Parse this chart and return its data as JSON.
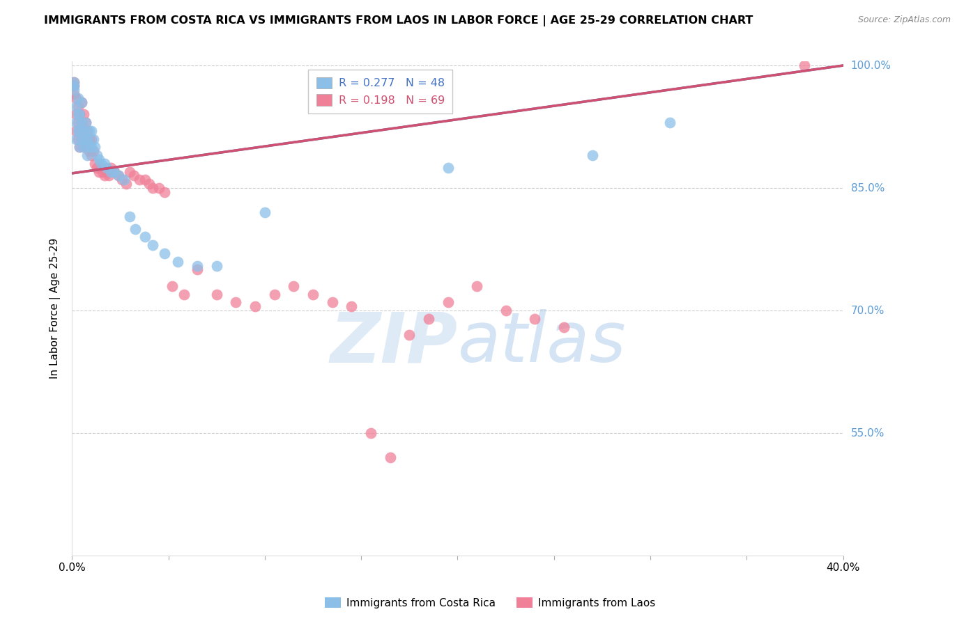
{
  "title": "IMMIGRANTS FROM COSTA RICA VS IMMIGRANTS FROM LAOS IN LABOR FORCE | AGE 25-29 CORRELATION CHART",
  "source": "Source: ZipAtlas.com",
  "ylabel": "In Labor Force | Age 25-29",
  "legend_label_blue": "Immigrants from Costa Rica",
  "legend_label_pink": "Immigrants from Laos",
  "R_blue": 0.277,
  "N_blue": 48,
  "R_pink": 0.198,
  "N_pink": 69,
  "xlim": [
    0.0,
    0.4
  ],
  "ylim": [
    0.4,
    1.005
  ],
  "yticks": [
    0.55,
    0.7,
    0.85,
    1.0
  ],
  "ytick_labels": [
    "55.0%",
    "70.0%",
    "85.0%",
    "100.0%"
  ],
  "xticks": [
    0.0,
    0.05,
    0.1,
    0.15,
    0.2,
    0.25,
    0.3,
    0.35,
    0.4
  ],
  "xtick_labels": [
    "0.0%",
    "",
    "",
    "",
    "",
    "",
    "",
    "",
    "40.0%"
  ],
  "blue_color": "#8BBFE8",
  "pink_color": "#F08098",
  "blue_line_color": "#4472C4",
  "pink_line_color": "#D05070",
  "grid_color": "#CCCCCC",
  "right_label_color": "#5B9BD5",
  "watermark_zip": "ZIP",
  "watermark_atlas": "atlas",
  "costa_rica_x": [
    0.001,
    0.001,
    0.001,
    0.002,
    0.002,
    0.002,
    0.003,
    0.003,
    0.003,
    0.004,
    0.004,
    0.004,
    0.005,
    0.005,
    0.005,
    0.006,
    0.006,
    0.007,
    0.007,
    0.008,
    0.008,
    0.009,
    0.009,
    0.01,
    0.01,
    0.011,
    0.012,
    0.013,
    0.014,
    0.015,
    0.017,
    0.018,
    0.02,
    0.022,
    0.024,
    0.027,
    0.03,
    0.033,
    0.038,
    0.042,
    0.048,
    0.055,
    0.065,
    0.075,
    0.1,
    0.195,
    0.27,
    0.31
  ],
  "costa_rica_y": [
    0.97,
    0.975,
    0.98,
    0.91,
    0.93,
    0.95,
    0.92,
    0.94,
    0.96,
    0.9,
    0.92,
    0.94,
    0.91,
    0.93,
    0.955,
    0.9,
    0.92,
    0.91,
    0.93,
    0.89,
    0.91,
    0.9,
    0.92,
    0.9,
    0.92,
    0.91,
    0.9,
    0.89,
    0.885,
    0.88,
    0.88,
    0.875,
    0.87,
    0.87,
    0.865,
    0.86,
    0.815,
    0.8,
    0.79,
    0.78,
    0.77,
    0.76,
    0.755,
    0.755,
    0.82,
    0.875,
    0.89,
    0.93
  ],
  "laos_x": [
    0.001,
    0.001,
    0.001,
    0.002,
    0.002,
    0.002,
    0.003,
    0.003,
    0.003,
    0.004,
    0.004,
    0.004,
    0.005,
    0.005,
    0.005,
    0.006,
    0.006,
    0.006,
    0.007,
    0.007,
    0.008,
    0.008,
    0.009,
    0.009,
    0.01,
    0.01,
    0.011,
    0.012,
    0.013,
    0.014,
    0.015,
    0.016,
    0.017,
    0.018,
    0.019,
    0.02,
    0.022,
    0.024,
    0.026,
    0.028,
    0.03,
    0.032,
    0.035,
    0.038,
    0.04,
    0.042,
    0.045,
    0.048,
    0.052,
    0.058,
    0.065,
    0.075,
    0.085,
    0.095,
    0.105,
    0.115,
    0.125,
    0.135,
    0.145,
    0.155,
    0.165,
    0.175,
    0.185,
    0.195,
    0.21,
    0.225,
    0.24,
    0.255,
    0.38
  ],
  "laos_y": [
    0.965,
    0.975,
    0.98,
    0.92,
    0.94,
    0.96,
    0.91,
    0.93,
    0.95,
    0.9,
    0.92,
    0.94,
    0.91,
    0.93,
    0.955,
    0.9,
    0.92,
    0.94,
    0.91,
    0.93,
    0.9,
    0.92,
    0.895,
    0.91,
    0.89,
    0.91,
    0.895,
    0.88,
    0.875,
    0.87,
    0.875,
    0.87,
    0.865,
    0.87,
    0.865,
    0.875,
    0.87,
    0.865,
    0.86,
    0.855,
    0.87,
    0.865,
    0.86,
    0.86,
    0.855,
    0.85,
    0.85,
    0.845,
    0.73,
    0.72,
    0.75,
    0.72,
    0.71,
    0.705,
    0.72,
    0.73,
    0.72,
    0.71,
    0.705,
    0.55,
    0.52,
    0.67,
    0.69,
    0.71,
    0.73,
    0.7,
    0.69,
    0.68,
    1.0
  ],
  "blue_trend_x": [
    0.0,
    0.4
  ],
  "blue_trend_y": [
    0.868,
    1.0
  ],
  "pink_trend_x": [
    0.0,
    0.4
  ],
  "pink_trend_y": [
    0.868,
    1.0
  ]
}
